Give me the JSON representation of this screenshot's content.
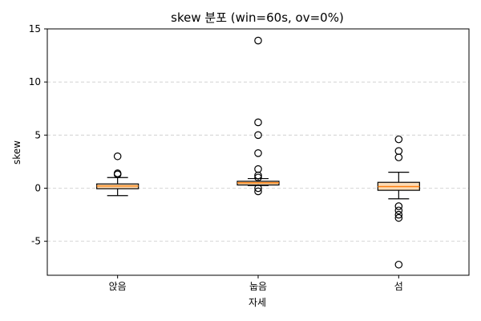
{
  "chart_data": {
    "type": "boxplot",
    "title": "skew 분포 (win=60s, ov=0%)",
    "xlabel": "자세",
    "ylabel": "skew",
    "ylim": [
      -8.2,
      15
    ],
    "yticks": [
      15,
      10,
      5,
      0,
      -5
    ],
    "ytick_labels": [
      "15",
      "10",
      "5",
      "0",
      "-5"
    ],
    "grid": "y-dashed",
    "colors": {
      "box": "#fddcb6",
      "median": "#ff7f0e",
      "outline": "#000000",
      "grid": "#cccccc"
    },
    "categories": [
      "앉음",
      "눕음",
      "섬"
    ],
    "boxes": [
      {
        "whisker_low": -0.7,
        "q1": -0.05,
        "median": 0.2,
        "q3": 0.4,
        "whisker_high": 1.0,
        "outliers": [
          3.0,
          1.4,
          1.3
        ]
      },
      {
        "whisker_low": 0.25,
        "q1": 0.3,
        "median": 0.5,
        "q3": 0.65,
        "whisker_high": 0.9,
        "outliers": [
          13.9,
          6.2,
          5.0,
          3.3,
          1.8,
          1.2,
          1.0,
          0.0,
          -0.3
        ]
      },
      {
        "whisker_low": -1.0,
        "q1": -0.2,
        "median": 0.15,
        "q3": 0.55,
        "whisker_high": 1.5,
        "outliers": [
          4.6,
          3.5,
          2.9,
          -1.7,
          -2.1,
          -2.5,
          -2.8,
          -7.2
        ]
      }
    ]
  }
}
